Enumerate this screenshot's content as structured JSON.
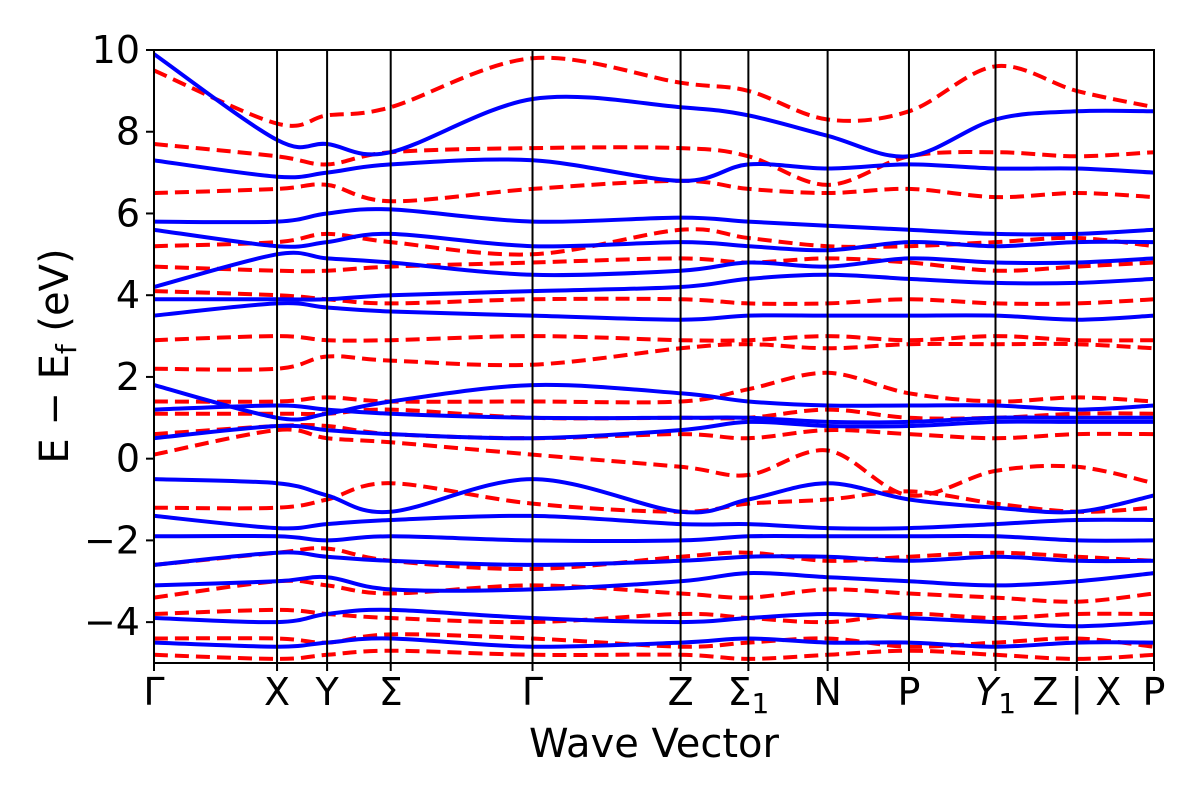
{
  "chart_data": {
    "type": "line",
    "title": "",
    "xlabel": "Wave Vector",
    "ylabel": "E − E_f (eV)",
    "ylabel_parts": {
      "main": "E − E",
      "sub": "f",
      "unit": " (eV)"
    },
    "ylim": [
      -5,
      10
    ],
    "yticks": [
      10,
      8,
      6,
      4,
      2,
      0,
      -2,
      -4
    ],
    "ytick_labels": [
      "10",
      "8",
      "6",
      "4",
      "2",
      "0",
      "−2",
      "−4"
    ],
    "kpath": [
      {
        "main": "Γ",
        "sub": "",
        "pos": 0.0
      },
      {
        "main": "X",
        "sub": "",
        "pos": 1.18
      },
      {
        "main": "Y",
        "sub": "",
        "pos": 1.66
      },
      {
        "main": "Σ",
        "sub": "",
        "pos": 2.27
      },
      {
        "main": "Γ",
        "sub": "",
        "pos": 3.63
      },
      {
        "main": "Z",
        "sub": "",
        "pos": 5.05
      },
      {
        "main": "Σ",
        "sub": "1",
        "pos": 5.7
      },
      {
        "main": "N",
        "sub": "",
        "pos": 6.46
      },
      {
        "main": "P",
        "sub": "",
        "pos": 7.24
      },
      {
        "main": "Y",
        "sub": "1",
        "pos": 8.07,
        "italic": true
      },
      {
        "main": "Z | X",
        "sub": "",
        "pos": 8.85
      },
      {
        "main": "P",
        "sub": "",
        "pos": 9.59
      }
    ],
    "x_range": [
      0,
      9.59
    ],
    "legend": "none",
    "grid": false,
    "series": [
      {
        "spin": "up",
        "color": "#0000ff",
        "style": "solid",
        "values": [
          [
            9.9,
            7.8,
            7.7,
            7.5,
            8.8,
            8.6,
            8.4,
            7.9,
            7.4,
            8.3,
            8.5,
            8.5
          ],
          [
            7.3,
            6.9,
            7.0,
            7.2,
            7.3,
            6.8,
            7.2,
            7.1,
            7.2,
            7.1,
            7.1,
            7.0
          ],
          [
            5.8,
            5.8,
            6.0,
            6.1,
            5.8,
            5.9,
            5.8,
            5.7,
            5.6,
            5.5,
            5.5,
            5.6
          ],
          [
            5.6,
            5.2,
            5.3,
            5.5,
            5.2,
            5.3,
            5.2,
            5.1,
            5.3,
            5.2,
            5.3,
            5.3
          ],
          [
            4.2,
            5.0,
            4.9,
            4.8,
            4.5,
            4.6,
            4.8,
            4.7,
            4.9,
            4.8,
            4.8,
            4.9
          ],
          [
            3.9,
            3.9,
            3.9,
            4.0,
            4.1,
            4.2,
            4.4,
            4.5,
            4.4,
            4.3,
            4.3,
            4.4
          ],
          [
            3.5,
            3.8,
            3.7,
            3.6,
            3.5,
            3.4,
            3.5,
            3.5,
            3.5,
            3.5,
            3.4,
            3.5
          ],
          [
            1.8,
            1.0,
            1.1,
            1.4,
            1.8,
            1.6,
            1.4,
            1.3,
            1.3,
            1.3,
            1.2,
            1.3
          ],
          [
            1.2,
            1.3,
            1.2,
            1.1,
            1.0,
            1.0,
            1.0,
            0.9,
            0.9,
            1.0,
            1.0,
            1.0
          ],
          [
            0.5,
            0.8,
            0.7,
            0.6,
            0.5,
            0.7,
            0.9,
            0.8,
            0.8,
            0.9,
            0.9,
            0.9
          ],
          [
            -0.5,
            -0.6,
            -0.9,
            -1.3,
            -0.5,
            -1.3,
            -1.0,
            -0.6,
            -1.0,
            -1.2,
            -1.3,
            -0.9
          ],
          [
            -1.4,
            -1.7,
            -1.6,
            -1.5,
            -1.4,
            -1.6,
            -1.6,
            -1.7,
            -1.7,
            -1.6,
            -1.5,
            -1.5
          ],
          [
            -1.9,
            -1.9,
            -2.0,
            -1.9,
            -2.0,
            -2.0,
            -1.9,
            -1.9,
            -1.9,
            -1.9,
            -2.0,
            -2.0
          ],
          [
            -2.6,
            -2.3,
            -2.4,
            -2.5,
            -2.6,
            -2.5,
            -2.4,
            -2.4,
            -2.5,
            -2.4,
            -2.5,
            -2.5
          ],
          [
            -3.1,
            -3.0,
            -2.9,
            -3.2,
            -3.2,
            -3.0,
            -2.8,
            -2.9,
            -3.0,
            -3.1,
            -3.0,
            -2.8
          ],
          [
            -3.9,
            -4.0,
            -3.8,
            -3.7,
            -3.9,
            -4.0,
            -3.9,
            -3.8,
            -3.9,
            -4.0,
            -4.1,
            -4.0
          ],
          [
            -4.5,
            -4.6,
            -4.5,
            -4.4,
            -4.6,
            -4.5,
            -4.4,
            -4.5,
            -4.5,
            -4.6,
            -4.5,
            -4.5
          ]
        ]
      },
      {
        "spin": "down",
        "color": "#ff0000",
        "style": "dashed",
        "values": [
          [
            9.5,
            8.2,
            8.4,
            8.6,
            9.8,
            9.2,
            9.0,
            8.3,
            8.5,
            9.6,
            9.0,
            8.6
          ],
          [
            7.7,
            7.4,
            7.2,
            7.5,
            7.6,
            7.6,
            7.4,
            6.7,
            7.4,
            7.5,
            7.4,
            7.5
          ],
          [
            6.5,
            6.6,
            6.7,
            6.3,
            6.6,
            6.8,
            6.6,
            6.5,
            6.6,
            6.4,
            6.5,
            6.4
          ],
          [
            5.2,
            5.3,
            5.5,
            5.3,
            5.0,
            5.6,
            5.4,
            5.2,
            5.2,
            5.3,
            5.4,
            5.2
          ],
          [
            4.7,
            4.6,
            4.6,
            4.7,
            4.8,
            4.9,
            4.8,
            4.9,
            4.8,
            4.6,
            4.7,
            4.8
          ],
          [
            4.1,
            4.0,
            3.9,
            3.8,
            3.9,
            3.9,
            3.8,
            3.8,
            3.9,
            3.8,
            3.8,
            3.9
          ],
          [
            2.9,
            3.0,
            2.9,
            2.9,
            3.0,
            2.9,
            2.9,
            3.0,
            2.9,
            3.0,
            2.9,
            2.9
          ],
          [
            2.2,
            2.2,
            2.5,
            2.4,
            2.3,
            2.7,
            2.8,
            2.7,
            2.8,
            2.8,
            2.8,
            2.7
          ],
          [
            1.4,
            1.4,
            1.5,
            1.4,
            1.4,
            1.4,
            1.7,
            2.1,
            1.6,
            1.4,
            1.5,
            1.4
          ],
          [
            1.1,
            1.1,
            1.1,
            1.2,
            1.0,
            1.0,
            1.0,
            1.2,
            1.0,
            1.0,
            1.1,
            1.1
          ],
          [
            0.6,
            0.8,
            0.8,
            0.6,
            0.5,
            0.6,
            0.5,
            0.7,
            0.6,
            0.5,
            0.6,
            0.6
          ],
          [
            0.1,
            0.7,
            0.5,
            0.4,
            0.1,
            -0.2,
            -0.4,
            0.2,
            -0.9,
            -0.3,
            -0.2,
            -0.6
          ],
          [
            -1.2,
            -1.2,
            -1.0,
            -0.6,
            -1.1,
            -1.3,
            -1.1,
            -1.0,
            -0.8,
            -1.1,
            -1.3,
            -1.2
          ],
          [
            -2.6,
            -2.3,
            -2.2,
            -2.5,
            -2.7,
            -2.4,
            -2.3,
            -2.5,
            -2.4,
            -2.3,
            -2.4,
            -2.5
          ],
          [
            -3.4,
            -3.0,
            -3.1,
            -3.3,
            -3.1,
            -3.3,
            -3.4,
            -3.2,
            -3.3,
            -3.4,
            -3.5,
            -3.3
          ],
          [
            -3.8,
            -3.7,
            -3.8,
            -3.9,
            -4.0,
            -3.8,
            -3.9,
            -4.0,
            -3.8,
            -3.9,
            -3.8,
            -3.8
          ],
          [
            -4.4,
            -4.4,
            -4.5,
            -4.3,
            -4.4,
            -4.6,
            -4.5,
            -4.4,
            -4.6,
            -4.5,
            -4.4,
            -4.6
          ],
          [
            -4.8,
            -4.9,
            -4.8,
            -4.7,
            -4.8,
            -4.8,
            -4.9,
            -4.8,
            -4.7,
            -4.8,
            -4.9,
            -4.8
          ]
        ]
      }
    ]
  }
}
